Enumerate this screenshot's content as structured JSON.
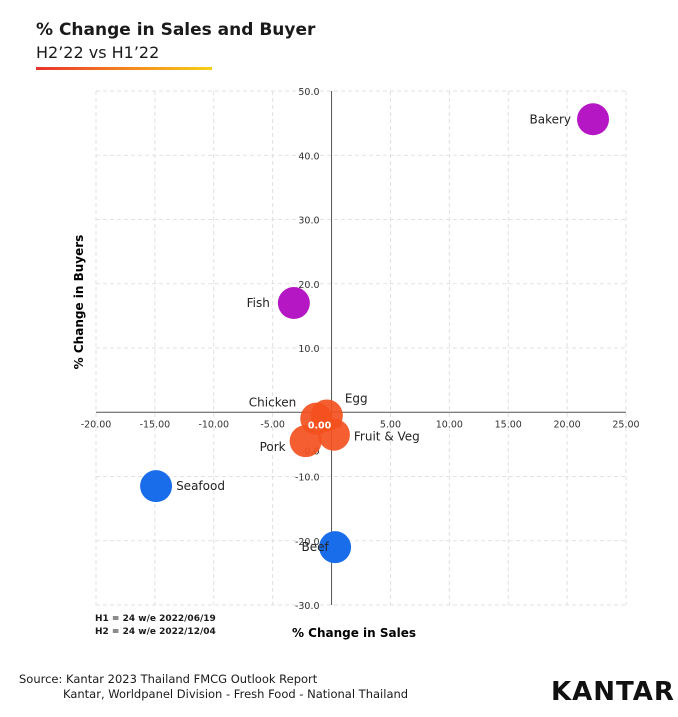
{
  "header": {
    "title": "% Change in Sales and Buyer",
    "subtitle": "H2’22 vs H1’22"
  },
  "chart_data": {
    "type": "scatter",
    "title": "% Change in Sales and Buyer",
    "subtitle": "H2’22 vs H1’22",
    "xlabel": "% Change in Sales",
    "ylabel": "% Change in Buyers",
    "xlim": [
      -20,
      25
    ],
    "ylim": [
      -30,
      50
    ],
    "x_ticks": [
      "-20.00",
      "-15.00",
      "-10.00",
      "-5.00",
      "0.00",
      "5.00",
      "10.00",
      "15.00",
      "20.00",
      "25.00"
    ],
    "y_ticks": [
      "50.0",
      "40.0",
      "30.0",
      "20.0",
      "10.0",
      "0.0",
      "-10.0",
      "-20.0",
      "-30.0"
    ],
    "grid": true,
    "points": [
      {
        "label": "Bakery",
        "x": 22.2,
        "y": 45.6,
        "color": "#b517c4"
      },
      {
        "label": "Fish",
        "x": -3.2,
        "y": 17.0,
        "color": "#b517c4"
      },
      {
        "label": "Chicken",
        "x": -1.3,
        "y": -1.0,
        "color": "#f3501e"
      },
      {
        "label": "Egg",
        "x": -0.4,
        "y": -0.5,
        "color": "#f3501e"
      },
      {
        "label": "Pork",
        "x": -2.2,
        "y": -4.5,
        "color": "#f3501e"
      },
      {
        "label": "Fruit & Veg",
        "x": 0.2,
        "y": -3.5,
        "color": "#f3501e"
      },
      {
        "label": "Seafood",
        "x": -14.9,
        "y": -11.5,
        "color": "#1a6dea"
      },
      {
        "label": "Beef",
        "x": 0.3,
        "y": -21.0,
        "color": "#1a6dea"
      }
    ]
  },
  "notes": {
    "h1": "H1 = 24 w/e 2022/06/19",
    "h2": "H2 = 24 w/e 2022/12/04"
  },
  "footer": {
    "source_line1": "Source: Kantar 2023 Thailand FMCG Outlook Report",
    "source_line2": "Kantar, Worldpanel Division - Fresh Food - National Thailand",
    "logo": "KANTAR"
  }
}
